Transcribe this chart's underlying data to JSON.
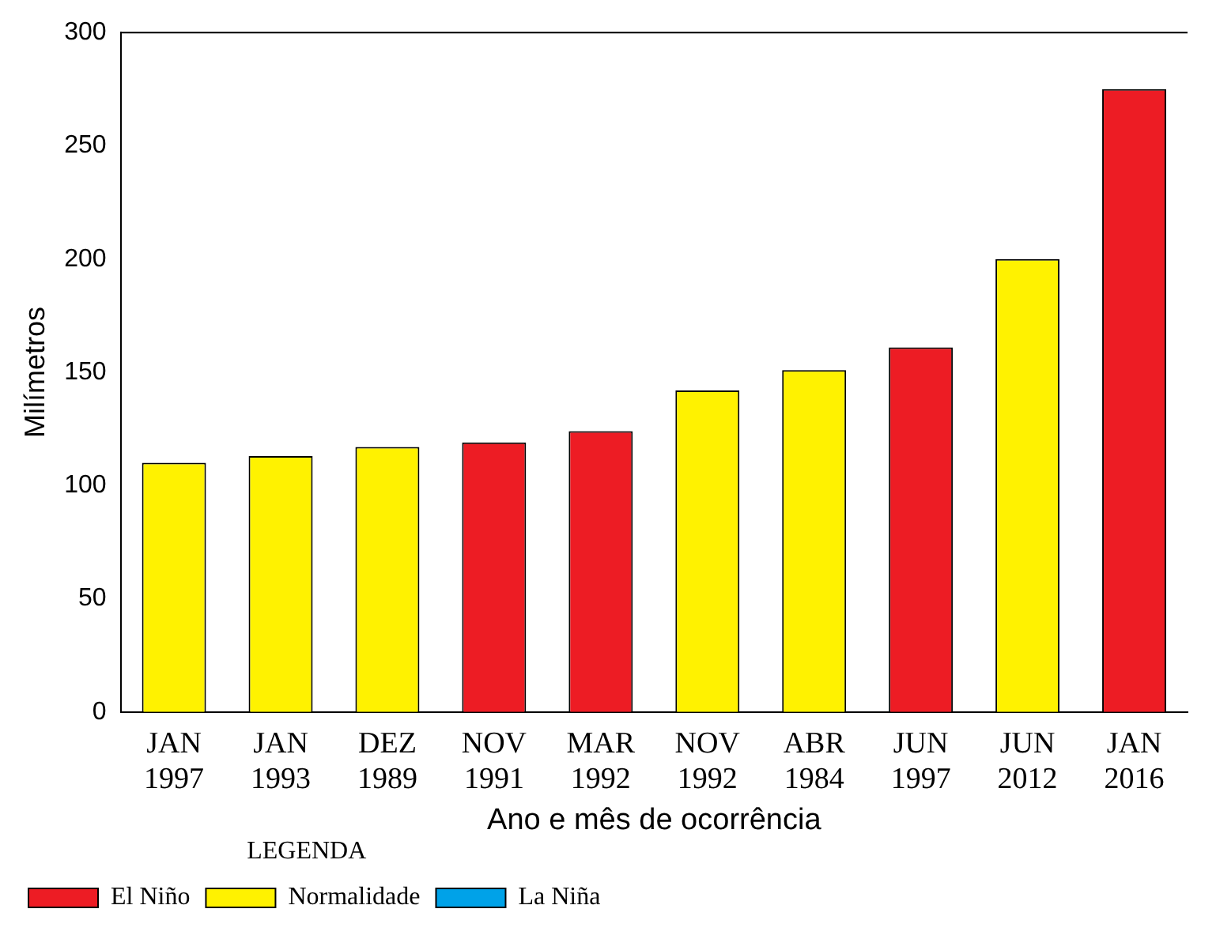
{
  "chart_data": {
    "type": "bar",
    "xlabel": "Ano e mês de ocorrência",
    "ylabel": "Milímetros",
    "legend_title": "LEGENDA",
    "categories": [
      "JAN 1997",
      "JAN 1993",
      "DEZ 1989",
      "NOV 1991",
      "MAR 1992",
      "NOV 1992",
      "ABR 1984",
      "JUN 1997",
      "JUN 2012",
      "JAN 2016"
    ],
    "series": [
      {
        "name": "El Niño",
        "color": "#ed1c24",
        "values": [
          null,
          null,
          null,
          119,
          124,
          null,
          null,
          161,
          null,
          275
        ]
      },
      {
        "name": "Normalidade",
        "color": "#fff200",
        "values": [
          110,
          113,
          117,
          null,
          null,
          142,
          151,
          null,
          200,
          null
        ]
      },
      {
        "name": "La Niña",
        "color": "#00a2e8",
        "values": [
          null,
          null,
          null,
          null,
          null,
          null,
          null,
          null,
          null,
          null
        ]
      }
    ],
    "ylim": [
      0,
      300
    ],
    "yticks": [
      0,
      50,
      100,
      150,
      200,
      250,
      300
    ],
    "grid": false,
    "legend": "bottom left"
  }
}
